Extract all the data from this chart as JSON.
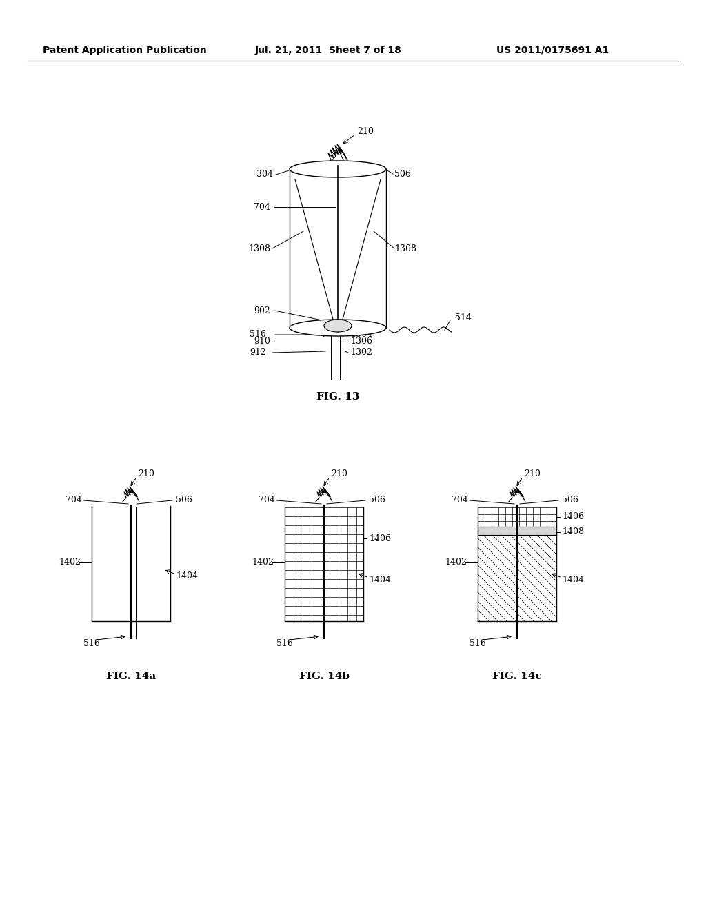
{
  "title_left": "Patent Application Publication",
  "title_mid": "Jul. 21, 2011  Sheet 7 of 18",
  "title_right": "US 2011/0175691 A1",
  "fig13_label": "FIG. 13",
  "fig14a_label": "FIG. 14a",
  "fig14b_label": "FIG. 14b",
  "fig14c_label": "FIG. 14c",
  "bg_color": "#ffffff",
  "line_color": "#000000",
  "header_fontsize": 10,
  "label_fontsize": 9,
  "fig_label_fontsize": 11
}
